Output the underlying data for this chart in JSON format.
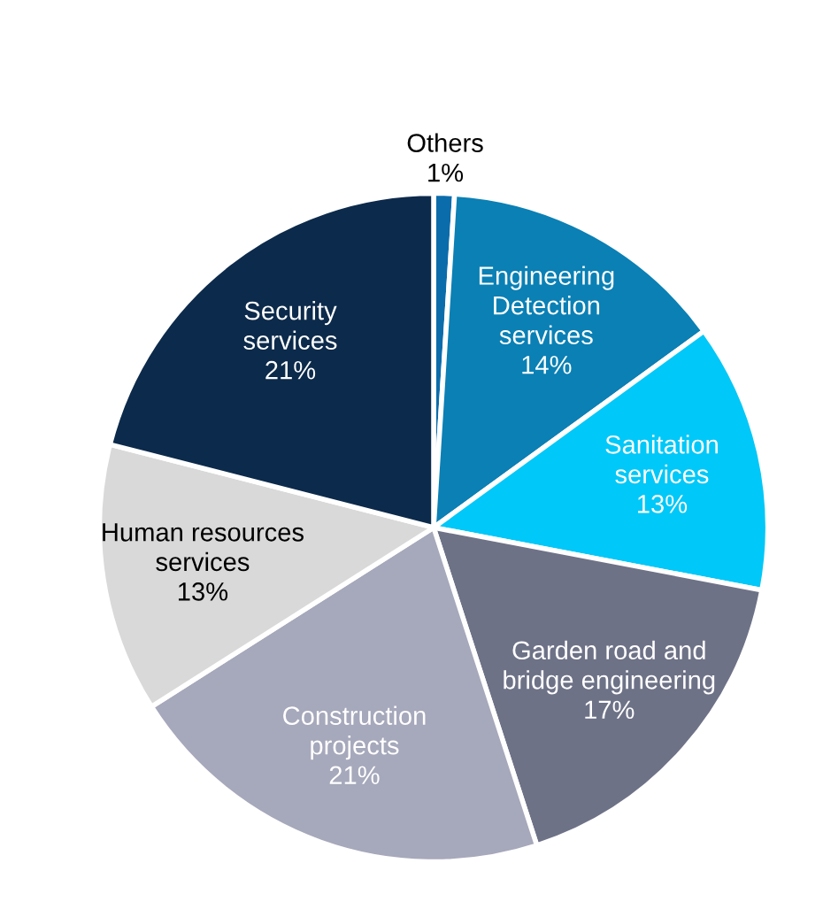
{
  "chart_data": {
    "type": "pie",
    "categories": [
      "Others",
      "Engineering\nDetection\nservices",
      "Sanitation\nservices",
      "Garden road and\nbridge engineering",
      "Construction\nprojects",
      "Human resources\nservices",
      "Security\nservices"
    ],
    "values": [
      1,
      14,
      13,
      17,
      21,
      13,
      21
    ],
    "value_labels": [
      "1%",
      "14%",
      "13%",
      "17%",
      "21%",
      "13%",
      "21%"
    ],
    "colors": [
      "#0b6cab",
      "#0a80b5",
      "#00c8f8",
      "#6e7287",
      "#a6a8bb",
      "#d9d9d9",
      "#0c2a4b"
    ]
  }
}
